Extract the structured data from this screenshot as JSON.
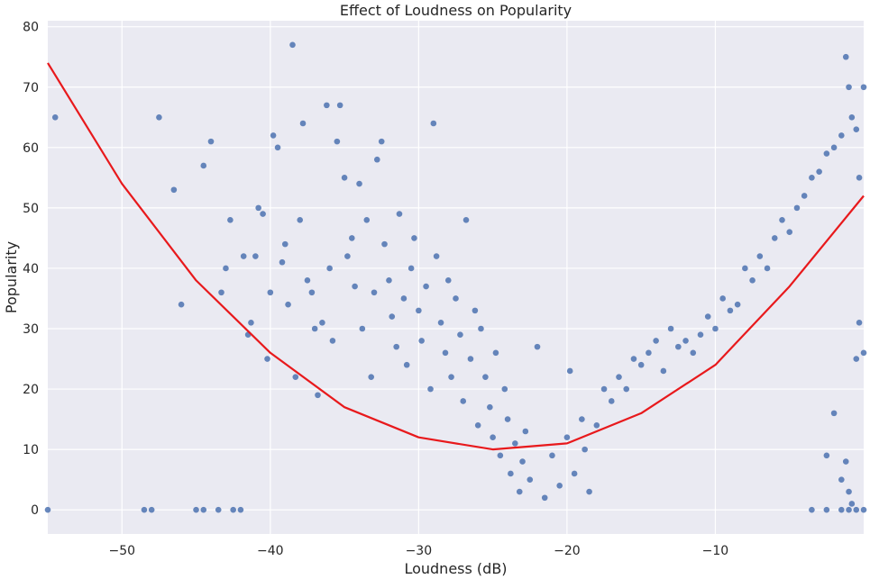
{
  "chart_data": {
    "type": "scatter",
    "title": "Effect of Loudness on Popularity",
    "xlabel": "Loudness (dB)",
    "ylabel": "Popularity",
    "xlim": [
      -55,
      0
    ],
    "ylim": [
      -4,
      81
    ],
    "x_ticks": [
      -50,
      -40,
      -30,
      -20,
      -10
    ],
    "y_ticks": [
      0,
      10,
      20,
      30,
      40,
      50,
      60,
      70,
      80
    ],
    "grid": true,
    "colors": {
      "background": "#EAEAF2",
      "points": "#4C72B0",
      "fit_line": "#E8191C",
      "grid": "#FFFFFF",
      "text": "#262626"
    },
    "series": [
      {
        "kind": "scatter",
        "points": [
          [
            -55,
            0
          ],
          [
            -54.5,
            65
          ],
          [
            -48.5,
            0
          ],
          [
            -48,
            0
          ],
          [
            -47.5,
            65
          ],
          [
            -46.5,
            53
          ],
          [
            -46,
            34
          ],
          [
            -45,
            0
          ],
          [
            -44.5,
            0
          ],
          [
            -44.5,
            57
          ],
          [
            -44,
            61
          ],
          [
            -43.5,
            0
          ],
          [
            -43.3,
            36
          ],
          [
            -43,
            40
          ],
          [
            -42.7,
            48
          ],
          [
            -42.5,
            0
          ],
          [
            -42,
            0
          ],
          [
            -41.8,
            42
          ],
          [
            -41.5,
            29
          ],
          [
            -41.3,
            31
          ],
          [
            -41,
            42
          ],
          [
            -40.8,
            50
          ],
          [
            -40.5,
            49
          ],
          [
            -40.2,
            25
          ],
          [
            -40,
            36
          ],
          [
            -39.8,
            62
          ],
          [
            -39.5,
            60
          ],
          [
            -39.2,
            41
          ],
          [
            -39,
            44
          ],
          [
            -38.8,
            34
          ],
          [
            -38.5,
            77
          ],
          [
            -38.3,
            22
          ],
          [
            -38,
            48
          ],
          [
            -37.8,
            64
          ],
          [
            -37.5,
            38
          ],
          [
            -37.2,
            36
          ],
          [
            -37,
            30
          ],
          [
            -36.8,
            19
          ],
          [
            -36.5,
            31
          ],
          [
            -36.2,
            67
          ],
          [
            -36,
            40
          ],
          [
            -35.8,
            28
          ],
          [
            -35.5,
            61
          ],
          [
            -35.3,
            67
          ],
          [
            -35,
            55
          ],
          [
            -34.8,
            42
          ],
          [
            -34.5,
            45
          ],
          [
            -34.3,
            37
          ],
          [
            -34,
            54
          ],
          [
            -33.8,
            30
          ],
          [
            -33.5,
            48
          ],
          [
            -33.2,
            22
          ],
          [
            -33,
            36
          ],
          [
            -32.8,
            58
          ],
          [
            -32.5,
            61
          ],
          [
            -32.3,
            44
          ],
          [
            -32,
            38
          ],
          [
            -31.8,
            32
          ],
          [
            -31.5,
            27
          ],
          [
            -31.3,
            49
          ],
          [
            -31,
            35
          ],
          [
            -30.8,
            24
          ],
          [
            -30.5,
            40
          ],
          [
            -30.3,
            45
          ],
          [
            -30,
            33
          ],
          [
            -29.8,
            28
          ],
          [
            -29.5,
            37
          ],
          [
            -29.2,
            20
          ],
          [
            -29,
            64
          ],
          [
            -28.8,
            42
          ],
          [
            -28.5,
            31
          ],
          [
            -28.2,
            26
          ],
          [
            -28,
            38
          ],
          [
            -27.8,
            22
          ],
          [
            -27.5,
            35
          ],
          [
            -27.2,
            29
          ],
          [
            -27,
            18
          ],
          [
            -26.8,
            48
          ],
          [
            -26.5,
            25
          ],
          [
            -26.2,
            33
          ],
          [
            -26,
            14
          ],
          [
            -25.8,
            30
          ],
          [
            -25.5,
            22
          ],
          [
            -25.2,
            17
          ],
          [
            -25,
            12
          ],
          [
            -24.8,
            26
          ],
          [
            -24.5,
            9
          ],
          [
            -24.2,
            20
          ],
          [
            -24,
            15
          ],
          [
            -23.8,
            6
          ],
          [
            -23.5,
            11
          ],
          [
            -23.2,
            3
          ],
          [
            -23,
            8
          ],
          [
            -22.8,
            13
          ],
          [
            -22.5,
            5
          ],
          [
            -22,
            27
          ],
          [
            -21.5,
            2
          ],
          [
            -21,
            9
          ],
          [
            -20.5,
            4
          ],
          [
            -20,
            12
          ],
          [
            -19.8,
            23
          ],
          [
            -19.5,
            6
          ],
          [
            -19,
            15
          ],
          [
            -18.8,
            10
          ],
          [
            -18.5,
            3
          ],
          [
            -18,
            14
          ],
          [
            -17.5,
            20
          ],
          [
            -17,
            18
          ],
          [
            -16.5,
            22
          ],
          [
            -16,
            20
          ],
          [
            -15.5,
            25
          ],
          [
            -15,
            24
          ],
          [
            -14.5,
            26
          ],
          [
            -14,
            28
          ],
          [
            -13.5,
            23
          ],
          [
            -13,
            30
          ],
          [
            -12.5,
            27
          ],
          [
            -12,
            28
          ],
          [
            -11.5,
            26
          ],
          [
            -11,
            29
          ],
          [
            -10.5,
            32
          ],
          [
            -10,
            30
          ],
          [
            -9.5,
            35
          ],
          [
            -9,
            33
          ],
          [
            -8.5,
            34
          ],
          [
            -8,
            40
          ],
          [
            -7.5,
            38
          ],
          [
            -7,
            42
          ],
          [
            -6.5,
            40
          ],
          [
            -6,
            45
          ],
          [
            -5.5,
            48
          ],
          [
            -5,
            46
          ],
          [
            -4.5,
            50
          ],
          [
            -4,
            52
          ],
          [
            -3.5,
            55
          ],
          [
            -3,
            56
          ],
          [
            -2.5,
            59
          ],
          [
            -2,
            60
          ],
          [
            -1.5,
            62
          ],
          [
            -1.2,
            75
          ],
          [
            -1,
            70
          ],
          [
            -0.8,
            65
          ],
          [
            -0.5,
            63
          ],
          [
            -0.3,
            55
          ],
          [
            0,
            70
          ],
          [
            -2.5,
            9
          ],
          [
            -2,
            16
          ],
          [
            -1.5,
            5
          ],
          [
            -1.2,
            8
          ],
          [
            -1,
            3
          ],
          [
            -0.8,
            1
          ],
          [
            -0.5,
            25
          ],
          [
            -0.3,
            31
          ],
          [
            0,
            26
          ],
          [
            -3.5,
            0
          ],
          [
            -2.5,
            0
          ],
          [
            -1.5,
            0
          ],
          [
            -1,
            0
          ],
          [
            -0.5,
            0
          ],
          [
            0,
            0
          ]
        ]
      },
      {
        "kind": "fit_line",
        "equation_points": [
          [
            -55,
            74
          ],
          [
            -50,
            54
          ],
          [
            -45,
            38
          ],
          [
            -40,
            26
          ],
          [
            -35,
            17
          ],
          [
            -30,
            12
          ],
          [
            -25,
            10
          ],
          [
            -20,
            11
          ],
          [
            -15,
            16
          ],
          [
            -10,
            24
          ],
          [
            -5,
            37
          ],
          [
            0,
            52
          ]
        ]
      }
    ]
  }
}
